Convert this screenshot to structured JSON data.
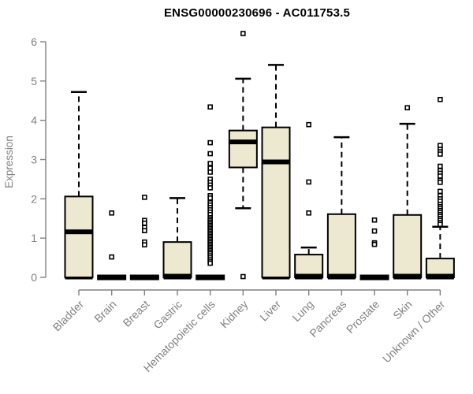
{
  "chart_data": {
    "type": "boxplot",
    "title": "ENSG00000230696 - AC011753.5",
    "xlabel": "",
    "ylabel": "Expression",
    "ylim": [
      0,
      6
    ],
    "yticks": [
      0,
      1,
      2,
      3,
      4,
      5,
      6
    ],
    "grid": false,
    "legend": "none",
    "colors": {
      "box_fill": "#EDE8D0",
      "line": "#000000",
      "axis_text": "#808080",
      "title_text": "#000000"
    },
    "categories": [
      "Bladder",
      "Brain",
      "Breast",
      "Gastric",
      "Hematopoietic cells",
      "Kidney",
      "Liver",
      "Lung",
      "Pancreas",
      "Prostate",
      "Skin",
      "Unknown / Other"
    ],
    "boxes": [
      {
        "category": "Bladder",
        "low": 0,
        "q1": 0,
        "median": 1.16,
        "q3": 2.06,
        "high": 4.72,
        "outliers": []
      },
      {
        "category": "Brain",
        "low": 0,
        "q1": 0,
        "median": 0,
        "q3": 0,
        "high": 0,
        "outliers": [
          1.64,
          0.52
        ]
      },
      {
        "category": "Breast",
        "low": 0,
        "q1": 0,
        "median": 0,
        "q3": 0,
        "high": 0,
        "outliers": [
          2.04,
          1.45,
          1.38,
          1.27,
          1.19,
          0.9,
          0.83
        ]
      },
      {
        "category": "Gastric",
        "low": 0,
        "q1": 0,
        "median": 0.03,
        "q3": 0.9,
        "high": 2.02,
        "outliers": []
      },
      {
        "category": "Hematopoietic cells",
        "low": 0,
        "q1": 0,
        "median": 0,
        "q3": 0,
        "high": 0,
        "outliers": [
          4.34,
          3.43,
          3.15,
          2.9,
          2.78,
          2.68,
          2.5,
          2.42,
          2.35,
          2.28,
          2.08,
          2.02,
          1.9,
          1.84,
          1.78,
          1.72,
          1.66,
          1.6,
          1.52,
          1.48,
          1.44,
          1.4,
          1.36,
          1.32,
          1.28,
          1.24,
          1.2,
          1.16,
          1.12,
          1.08,
          1.04,
          1.0,
          0.96,
          0.92,
          0.88,
          0.84,
          0.8,
          0.76,
          0.72,
          0.68,
          0.64,
          0.6,
          0.55,
          0.5,
          0.45,
          0.4,
          0.36
        ]
      },
      {
        "category": "Kidney",
        "low": 1.76,
        "q1": 2.8,
        "median": 3.45,
        "q3": 3.74,
        "high": 5.06,
        "outliers": [
          6.21,
          0.02
        ]
      },
      {
        "category": "Liver",
        "low": 0,
        "q1": 0,
        "median": 2.94,
        "q3": 3.82,
        "high": 5.41,
        "outliers": []
      },
      {
        "category": "Lung",
        "low": 0,
        "q1": 0,
        "median": 0.03,
        "q3": 0.58,
        "high": 0.76,
        "outliers": [
          3.89,
          2.43,
          1.64
        ]
      },
      {
        "category": "Pancreas",
        "low": 0,
        "q1": 0,
        "median": 0.03,
        "q3": 1.61,
        "high": 3.57,
        "outliers": []
      },
      {
        "category": "Prostate",
        "low": 0,
        "q1": 0,
        "median": 0,
        "q3": 0,
        "high": 0,
        "outliers": [
          1.46,
          1.18,
          0.88,
          0.84
        ]
      },
      {
        "category": "Skin",
        "low": 0,
        "q1": 0,
        "median": 0.03,
        "q3": 1.59,
        "high": 3.91,
        "outliers": [
          4.32
        ]
      },
      {
        "category": "Unknown / Other",
        "low": 0,
        "q1": 0,
        "median": 0.03,
        "q3": 0.48,
        "high": 1.29,
        "outliers": [
          4.53,
          3.36,
          3.26,
          3.2,
          3.14,
          2.83,
          2.72,
          2.65,
          2.58,
          2.47,
          2.42,
          2.19,
          2.08,
          2.0,
          1.94,
          1.86,
          1.8,
          1.75,
          1.7,
          1.65,
          1.6,
          1.55,
          1.5,
          1.45,
          1.4,
          1.35
        ]
      }
    ]
  }
}
